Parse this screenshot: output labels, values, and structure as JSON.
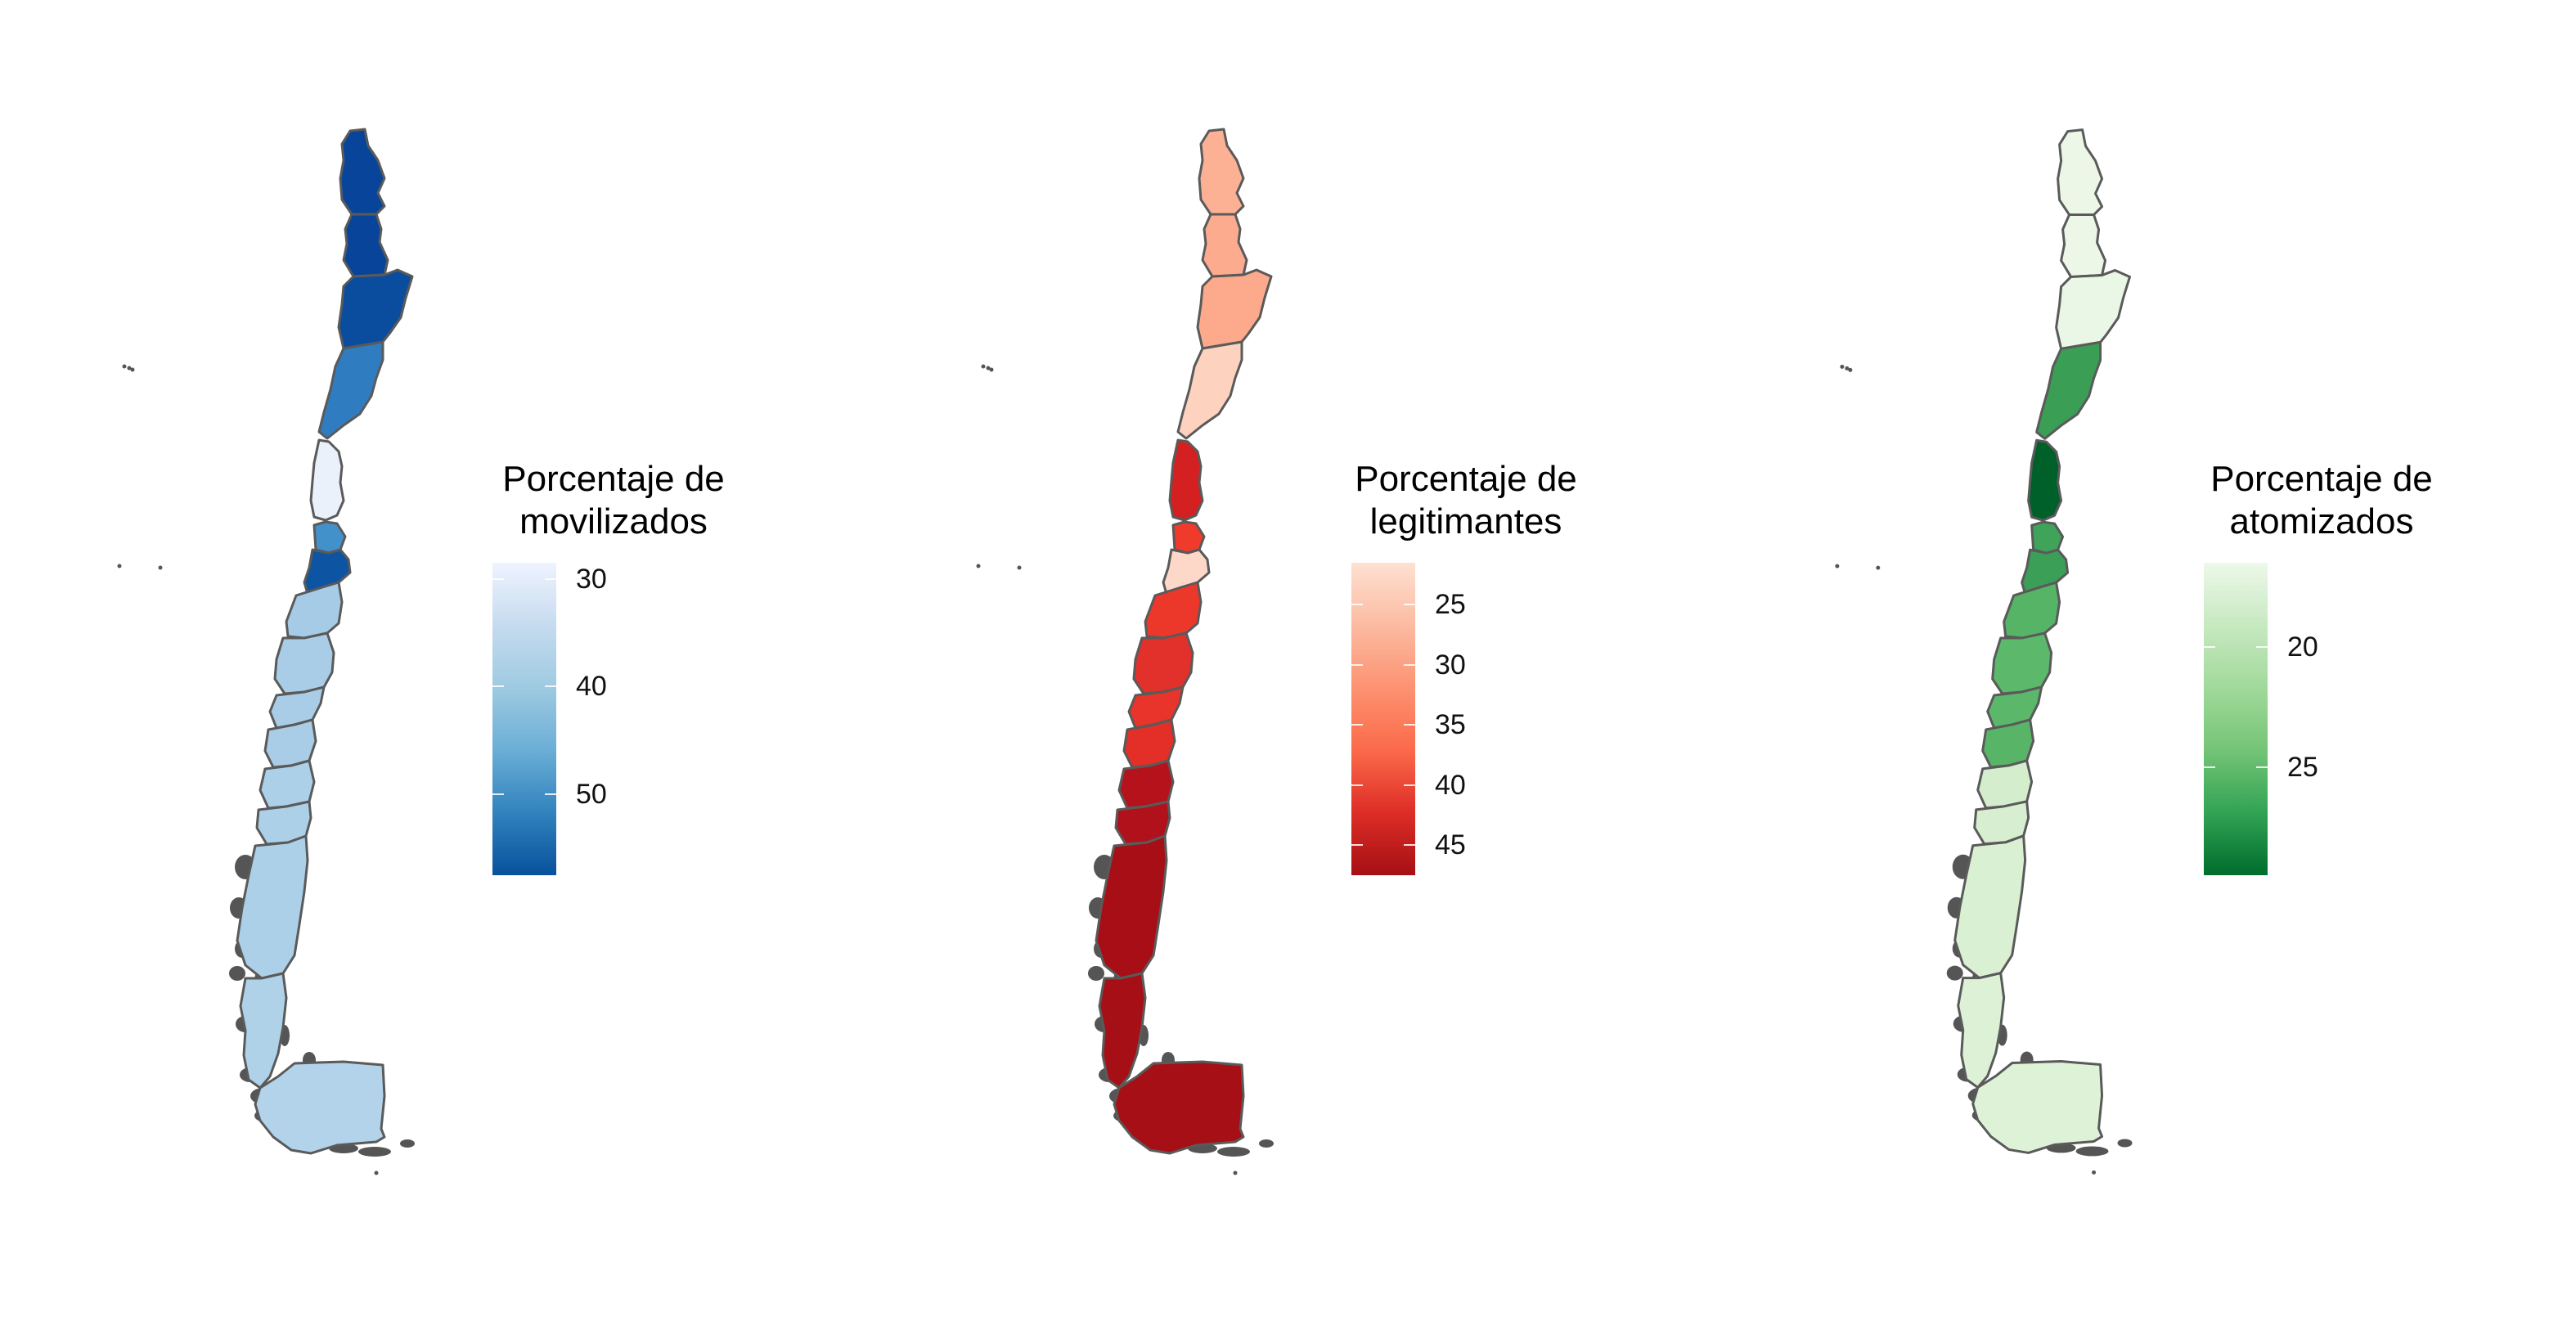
{
  "maps": [
    {
      "id": "movilizados",
      "legend": {
        "title_line1": "Porcentaje de",
        "title_line2": "movilizados",
        "ticks": [
          "30",
          "40",
          "50"
        ],
        "tick_values": [
          30,
          40,
          50
        ],
        "domain": [
          28.5,
          57.5
        ],
        "colors": [
          "#eff3ff",
          "#c6dbef",
          "#9ecae1",
          "#6baed6",
          "#3182bd",
          "#08519c"
        ]
      },
      "regions": [
        {
          "name": "Arica y Parinacota",
          "color": "#08459a"
        },
        {
          "name": "Tarapacá",
          "color": "#08459a"
        },
        {
          "name": "Antofagasta",
          "color": "#0a4c9e"
        },
        {
          "name": "Atacama",
          "color": "#2f7cc0"
        },
        {
          "name": "Coquimbo",
          "color": "#eaf1fb"
        },
        {
          "name": "Valparaíso",
          "color": "#4391cb"
        },
        {
          "name": "Metropolitana",
          "color": "#0d55a2"
        },
        {
          "name": "O'Higgins",
          "color": "#a6cbe6"
        },
        {
          "name": "Maule",
          "color": "#a9cde7"
        },
        {
          "name": "Ñuble",
          "color": "#a9cde7"
        },
        {
          "name": "Biobío",
          "color": "#a9cde7"
        },
        {
          "name": "Araucanía",
          "color": "#acd0e8"
        },
        {
          "name": "Los Ríos",
          "color": "#acd0e8"
        },
        {
          "name": "Los Lagos",
          "color": "#acd0e8"
        },
        {
          "name": "Aysén",
          "color": "#b0d2e9"
        },
        {
          "name": "Magallanes",
          "color": "#b3d3ea"
        }
      ]
    },
    {
      "id": "legitimantes",
      "legend": {
        "title_line1": "Porcentaje de",
        "title_line2": "legitimantes",
        "ticks": [
          "25",
          "30",
          "35",
          "40",
          "45"
        ],
        "tick_values": [
          25,
          30,
          35,
          40,
          45
        ],
        "domain": [
          21.5,
          47.5
        ],
        "colors": [
          "#fee0d2",
          "#fcbba1",
          "#fc9272",
          "#fb6a4a",
          "#de2d26",
          "#a50f15"
        ]
      },
      "regions": [
        {
          "name": "Arica y Parinacota",
          "color": "#fcb195"
        },
        {
          "name": "Tarapacá",
          "color": "#fcab8f"
        },
        {
          "name": "Antofagasta",
          "color": "#fca98c"
        },
        {
          "name": "Atacama",
          "color": "#fdd2bf"
        },
        {
          "name": "Coquimbo",
          "color": "#d42020"
        },
        {
          "name": "Valparaíso",
          "color": "#f03b2c"
        },
        {
          "name": "Metropolitana",
          "color": "#fdd8c8"
        },
        {
          "name": "O'Higgins",
          "color": "#ec382b"
        },
        {
          "name": "Maule",
          "color": "#e2312a"
        },
        {
          "name": "Ñuble",
          "color": "#e8342a"
        },
        {
          "name": "Biobío",
          "color": "#e32f27"
        },
        {
          "name": "Araucanía",
          "color": "#b5121b"
        },
        {
          "name": "Los Ríos",
          "color": "#b0111a"
        },
        {
          "name": "Los Lagos",
          "color": "#a80e16"
        },
        {
          "name": "Aysén",
          "color": "#a50f15"
        },
        {
          "name": "Magallanes",
          "color": "#a50f15"
        }
      ]
    },
    {
      "id": "atomizados",
      "legend": {
        "title_line1": "Porcentaje de",
        "title_line2": "atomizados",
        "ticks": [
          "20",
          "25"
        ],
        "tick_values": [
          20,
          25
        ],
        "domain": [
          16.5,
          29.5
        ],
        "colors": [
          "#edf8e9",
          "#c7e9c0",
          "#a1d99b",
          "#74c476",
          "#31a354",
          "#006d2c"
        ]
      },
      "regions": [
        {
          "name": "Arica y Parinacota",
          "color": "#ecf7e8"
        },
        {
          "name": "Tarapacá",
          "color": "#ecf7e8"
        },
        {
          "name": "Antofagasta",
          "color": "#eaf6e6"
        },
        {
          "name": "Atacama",
          "color": "#3a9e55"
        },
        {
          "name": "Coquimbo",
          "color": "#00602a"
        },
        {
          "name": "Valparaíso",
          "color": "#3fa35a"
        },
        {
          "name": "Metropolitana",
          "color": "#3c9f57"
        },
        {
          "name": "O'Higgins",
          "color": "#56b467"
        },
        {
          "name": "Maule",
          "color": "#5cb86b"
        },
        {
          "name": "Ñuble",
          "color": "#5bb76a"
        },
        {
          "name": "Biobío",
          "color": "#58b568"
        },
        {
          "name": "Araucanía",
          "color": "#d4eecd"
        },
        {
          "name": "Los Ríos",
          "color": "#d7efd0"
        },
        {
          "name": "Los Lagos",
          "color": "#daf0d3"
        },
        {
          "name": "Aysén",
          "color": "#dcf1d5"
        },
        {
          "name": "Magallanes",
          "color": "#def2d8"
        }
      ]
    }
  ],
  "style": {
    "border_color": "#5a5a5a",
    "island_color": "#555555"
  }
}
